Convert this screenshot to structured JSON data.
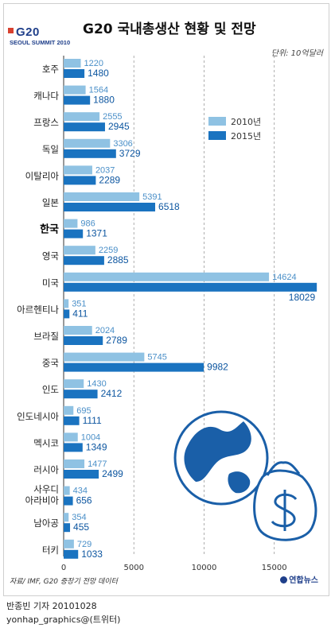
{
  "header": {
    "logo_top": "G20",
    "logo_bottom": "SEOUL SUMMIT 2010",
    "title": "G20 국내총생산 현황 및 전망",
    "unit": "단위: 10억달러"
  },
  "footer": {
    "source": "자료/ IMF, G20 중장기 전망 데이터",
    "brand": "연합뉴스",
    "credit_line1": "반종빈 기자 20101028",
    "credit_line2": "yonhap_graphics@(트위터)"
  },
  "colors": {
    "series_2010": "#8fc2e3",
    "series_2015": "#1a73c0",
    "value_2010": "#4a8fc8",
    "value_2015": "#0d56a0",
    "korea_highlight": "#000000"
  },
  "chart_data": {
    "type": "bar",
    "orientation": "horizontal",
    "categories": [
      "호주",
      "캐나다",
      "프랑스",
      "독일",
      "이탈리아",
      "일본",
      "한국",
      "영국",
      "미국",
      "아르헨티나",
      "브라질",
      "중국",
      "인도",
      "인도네시아",
      "멕시코",
      "러시아",
      "사우디\n아라비아",
      "남아공",
      "터키"
    ],
    "highlight_category": "한국",
    "series": [
      {
        "name": "2010년",
        "values": [
          1220,
          1564,
          2555,
          3306,
          2037,
          5391,
          986,
          2259,
          14624,
          351,
          2024,
          5745,
          1430,
          695,
          1004,
          1477,
          434,
          354,
          729
        ]
      },
      {
        "name": "2015년",
        "values": [
          1480,
          1880,
          2945,
          3729,
          2289,
          6518,
          1371,
          2885,
          18029,
          411,
          2789,
          9982,
          2412,
          1111,
          1349,
          2499,
          656,
          455,
          1033
        ]
      }
    ],
    "xlim": [
      0,
      18000
    ],
    "xticks": [
      0,
      5000,
      10000,
      15000
    ],
    "legend_position": "top-right",
    "gridlines": "vertical-dashed"
  }
}
